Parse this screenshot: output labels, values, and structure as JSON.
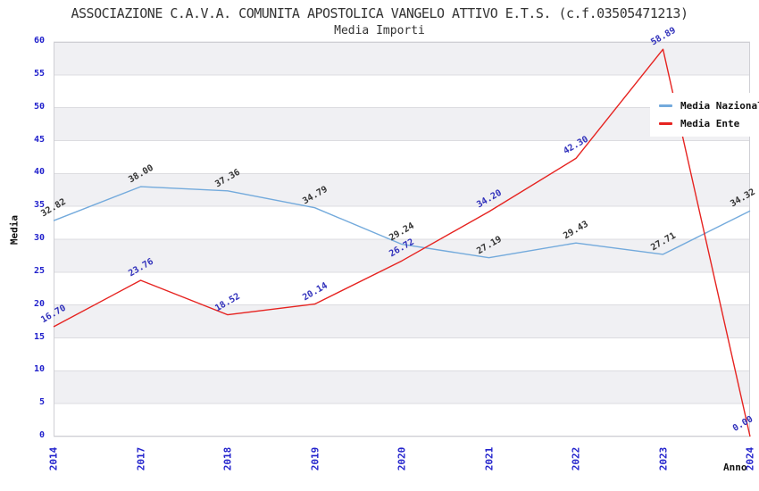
{
  "chart_data": {
    "type": "line",
    "title": "ASSOCIAZIONE C.A.V.A. COMUNITA APOSTOLICA VANGELO ATTIVO E.T.S. (c.f.03505471213)",
    "subtitle": "Media Importi",
    "xlabel": "Anno",
    "ylabel": "Media",
    "categories": [
      "2014",
      "2017",
      "2018",
      "2019",
      "2020",
      "2021",
      "2022",
      "2023",
      "2024"
    ],
    "ylim": [
      0,
      60
    ],
    "ytick_step": 5,
    "grid": "horizontal gridlines every 5 units with alternating gray/white bands",
    "legend_position": "top-right",
    "series": [
      {
        "name": "Media Nazionale",
        "color": "#73aadc",
        "label_color": "#333333",
        "values": [
          32.82,
          38.0,
          37.36,
          34.79,
          29.24,
          27.19,
          29.43,
          27.71,
          34.32
        ],
        "point_labels": [
          "32.82",
          "38.00",
          "37.36",
          "34.79",
          "29.24",
          "27.19",
          "29.43",
          "27.71",
          "34.32"
        ]
      },
      {
        "name": "Media Ente",
        "color": "#e62320",
        "label_color": "#3030bb",
        "values": [
          16.7,
          23.76,
          18.52,
          20.14,
          26.72,
          34.2,
          42.3,
          58.89,
          0.0
        ],
        "point_labels": [
          "16.70",
          "23.76",
          "18.52",
          "20.14",
          "26.72",
          "34.20",
          "42.30",
          "58.89",
          "0.00"
        ]
      }
    ],
    "colors": {
      "axis_tick_label": "#2222cc",
      "gridline": "#dcdce0",
      "plot_border": "#cfcfd4",
      "band_gray": "#f0f0f3",
      "title_text": "#333333"
    }
  }
}
